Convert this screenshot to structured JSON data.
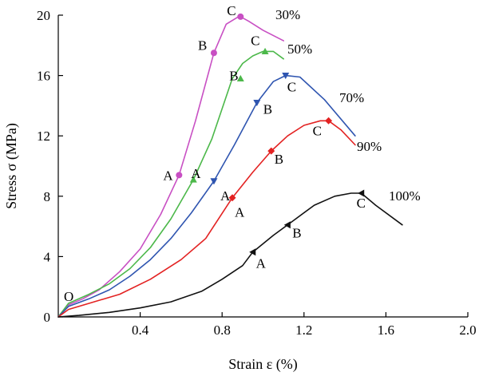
{
  "chart_data": {
    "type": "line",
    "title": "",
    "xlabel": "Strain ε (%)",
    "ylabel": "Stress σ (MPa)",
    "xlim": [
      0,
      2.0
    ],
    "ylim": [
      0,
      20
    ],
    "xticks": [
      "0.4",
      "0.8",
      "1.2",
      "1.6",
      "2.0"
    ],
    "xtick_values": [
      0.4,
      0.8,
      1.2,
      1.6,
      2.0
    ],
    "yticks": [
      "0",
      "4",
      "8",
      "12",
      "16",
      "20"
    ],
    "ytick_values": [
      0,
      4,
      8,
      12,
      16,
      20
    ],
    "origin_label": "O",
    "grid": false,
    "series": [
      {
        "name": "30%",
        "color": "#c84fc3",
        "marker": "circle",
        "x": [
          0,
          0.05,
          0.12,
          0.2,
          0.3,
          0.4,
          0.5,
          0.59,
          0.67,
          0.76,
          0.82,
          0.88,
          0.89,
          0.93,
          1.0,
          1.1
        ],
        "y": [
          0,
          0.8,
          1.2,
          1.8,
          3.0,
          4.5,
          6.8,
          9.4,
          13.0,
          17.5,
          19.4,
          19.9,
          19.9,
          19.6,
          19.0,
          18.3
        ],
        "points": [
          {
            "label": "A",
            "x": 0.59,
            "y": 9.4
          },
          {
            "label": "B",
            "x": 0.76,
            "y": 17.5
          },
          {
            "label": "C",
            "x": 0.89,
            "y": 19.9
          }
        ]
      },
      {
        "name": "50%",
        "color": "#4cb84a",
        "marker": "triangle-up",
        "x": [
          0,
          0.05,
          0.15,
          0.25,
          0.35,
          0.45,
          0.55,
          0.66,
          0.75,
          0.85,
          0.9,
          0.95,
          1.0,
          1.05,
          1.1
        ],
        "y": [
          0,
          0.9,
          1.5,
          2.2,
          3.2,
          4.6,
          6.5,
          9.1,
          11.8,
          15.8,
          16.8,
          17.3,
          17.6,
          17.6,
          17.1
        ],
        "points": [
          {
            "label": "A",
            "x": 0.66,
            "y": 9.1
          },
          {
            "label": "B",
            "x": 0.89,
            "y": 15.8
          },
          {
            "label": "C",
            "x": 1.01,
            "y": 17.6
          }
        ]
      },
      {
        "name": "70%",
        "color": "#2f55b0",
        "marker": "triangle-down",
        "x": [
          0,
          0.05,
          0.15,
          0.25,
          0.35,
          0.45,
          0.55,
          0.65,
          0.76,
          0.86,
          0.97,
          1.05,
          1.11,
          1.18,
          1.3,
          1.45
        ],
        "y": [
          0,
          0.7,
          1.2,
          1.8,
          2.7,
          3.8,
          5.2,
          6.9,
          9.0,
          11.4,
          14.2,
          15.6,
          16.0,
          15.9,
          14.4,
          12.0
        ],
        "points": [
          {
            "label": "A",
            "x": 0.76,
            "y": 9.0
          },
          {
            "label": "B",
            "x": 0.97,
            "y": 14.2
          },
          {
            "label": "C",
            "x": 1.11,
            "y": 16.0
          }
        ]
      },
      {
        "name": "90%",
        "color": "#e32222",
        "marker": "diamond",
        "x": [
          0,
          0.05,
          0.15,
          0.3,
          0.45,
          0.6,
          0.72,
          0.85,
          0.95,
          1.04,
          1.12,
          1.2,
          1.28,
          1.32,
          1.38,
          1.45
        ],
        "y": [
          0,
          0.5,
          0.9,
          1.5,
          2.5,
          3.8,
          5.2,
          7.9,
          9.6,
          11.0,
          12.0,
          12.7,
          13.0,
          13.0,
          12.4,
          11.4
        ],
        "points": [
          {
            "label": "A",
            "x": 0.85,
            "y": 7.9
          },
          {
            "label": "B",
            "x": 1.04,
            "y": 11.0
          },
          {
            "label": "C",
            "x": 1.32,
            "y": 13.0
          }
        ]
      },
      {
        "name": "100%",
        "color": "#111111",
        "marker": "triangle-left",
        "x": [
          0,
          0.1,
          0.25,
          0.4,
          0.55,
          0.7,
          0.8,
          0.9,
          0.95,
          1.05,
          1.15,
          1.25,
          1.35,
          1.43,
          1.48,
          1.55,
          1.68
        ],
        "y": [
          0,
          0.1,
          0.3,
          0.6,
          1.0,
          1.7,
          2.5,
          3.4,
          4.3,
          5.4,
          6.4,
          7.4,
          8.0,
          8.2,
          8.2,
          7.4,
          6.1
        ],
        "points": [
          {
            "label": "A",
            "x": 0.95,
            "y": 4.3
          },
          {
            "label": "B",
            "x": 1.12,
            "y": 6.1
          },
          {
            "label": "C",
            "x": 1.48,
            "y": 8.2
          }
        ]
      }
    ]
  }
}
